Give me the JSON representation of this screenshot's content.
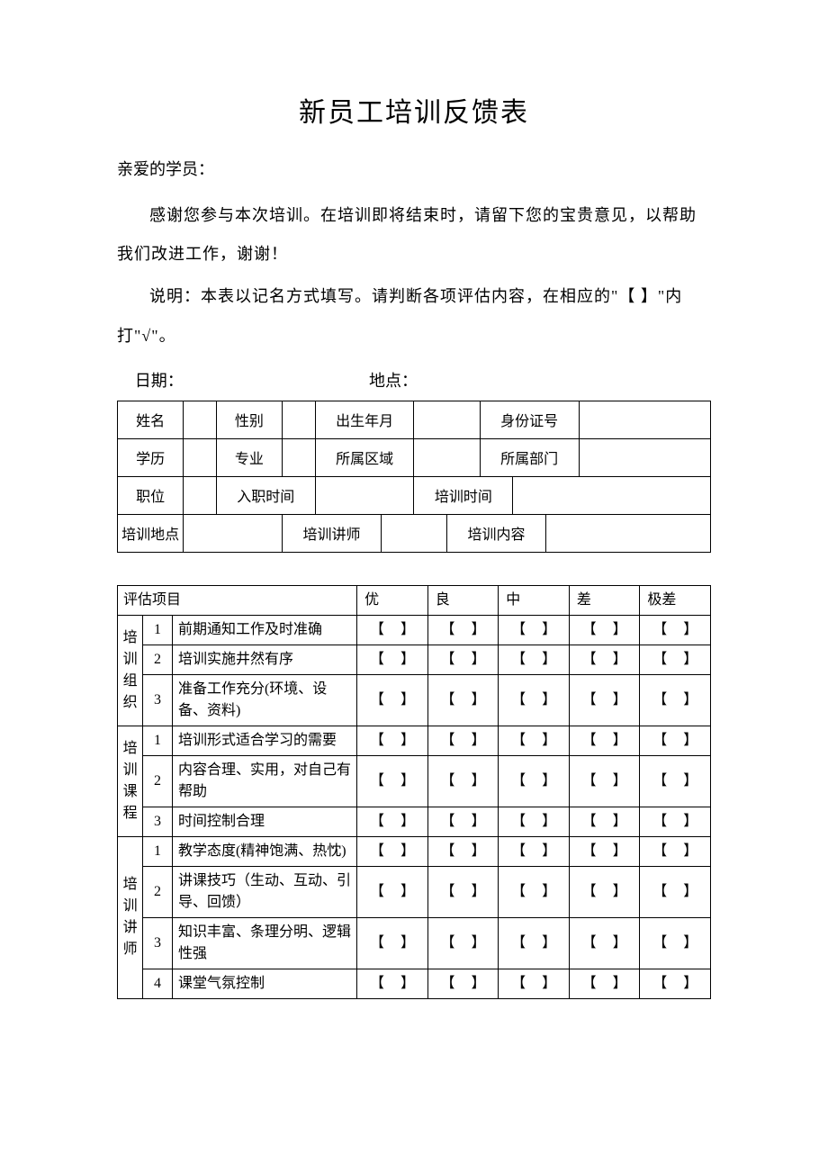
{
  "title": "新员工培训反馈表",
  "salutation": "亲爱的学员：",
  "para1": "感谢您参与本次培训。在培训即将结束时，请留下您的宝贵意见，以帮助我们改进工作，谢谢！",
  "para2": "说明：本表以记名方式填写。请判断各项评估内容，在相应的\"【 】\"内打\"√\"。",
  "dateLabel": "日期：",
  "locLabel": "地点：",
  "info": {
    "name": "姓名",
    "gender": "性别",
    "birth": "出生年月",
    "idno": "身份证号",
    "edu": "学历",
    "major": "专业",
    "region": "所属区域",
    "dept": "所属部门",
    "position": "职位",
    "entryTime": "入职时间",
    "trainTime": "培训时间",
    "trainLoc": "培训地点",
    "trainer": "培训讲师",
    "trainContent": "培训内容"
  },
  "eval": {
    "header": "评估项目",
    "scores": [
      "优",
      "良",
      "中",
      "差",
      "极差"
    ],
    "categories": [
      {
        "name": "培训组织",
        "items": [
          "前期通知工作及时准确",
          "培训实施井然有序",
          "准备工作充分(环境、设备、资料)"
        ]
      },
      {
        "name": "培训课程",
        "items": [
          "培训形式适合学习的需要",
          "内容合理、实用，对自己有帮助",
          "时间控制合理"
        ]
      },
      {
        "name": "培训讲师",
        "items": [
          "教学态度(精神饱满、热忱)",
          "讲课技巧（生动、互动、引导、回馈）",
          "知识丰富、条理分明、逻辑性强",
          "课堂气氛控制"
        ]
      }
    ]
  }
}
